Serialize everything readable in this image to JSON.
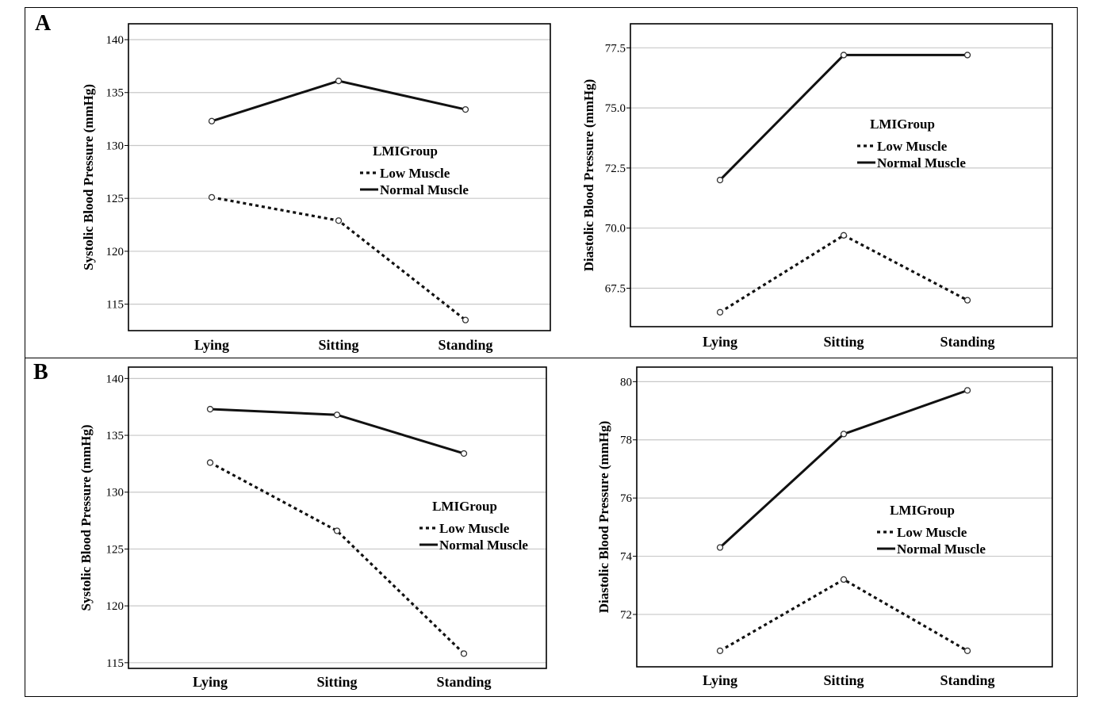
{
  "panels": [
    {
      "label": "A"
    },
    {
      "label": "B"
    }
  ],
  "chart_data": [
    {
      "type": "line",
      "panel": "A",
      "title": "",
      "xlabel": "",
      "ylabel": "Systolic Blood Pressure (mmHg)",
      "categories": [
        "Lying",
        "Sitting",
        "Standing"
      ],
      "ylim": [
        112.5,
        141.5
      ],
      "yticks": [
        115,
        120,
        125,
        130,
        135,
        140
      ],
      "ytick_labels": [
        "115",
        "120",
        "125",
        "130",
        "135",
        "140"
      ],
      "grid": true,
      "legend": {
        "title": "LMIGroup",
        "placement": "center-right"
      },
      "series": [
        {
          "name": "Low Muscle",
          "style": "dotted",
          "values": [
            125.1,
            122.9,
            113.5
          ]
        },
        {
          "name": "Normal Muscle",
          "style": "solid",
          "values": [
            132.3,
            136.1,
            133.4
          ]
        }
      ]
    },
    {
      "type": "line",
      "panel": "A",
      "title": "",
      "xlabel": "",
      "ylabel": "Diastolic Blood Pressure (mmHg)",
      "categories": [
        "Lying",
        "Sitting",
        "Standing"
      ],
      "ylim": [
        65.9,
        78.5
      ],
      "yticks": [
        67.5,
        70.0,
        72.5,
        75.0,
        77.5
      ],
      "ytick_labels": [
        "67.5",
        "70.0",
        "72.5",
        "75.0",
        "77.5"
      ],
      "grid": true,
      "legend": {
        "title": "LMIGroup",
        "placement": "center-right"
      },
      "series": [
        {
          "name": "Low Muscle",
          "style": "dotted",
          "values": [
            66.5,
            69.7,
            67.0
          ]
        },
        {
          "name": "Normal Muscle",
          "style": "solid",
          "values": [
            72.0,
            77.2,
            77.2
          ]
        }
      ]
    },
    {
      "type": "line",
      "panel": "B",
      "title": "",
      "xlabel": "",
      "ylabel": "Systolic Blood Pressure (mmHg)",
      "categories": [
        "Lying",
        "Sitting",
        "Standing"
      ],
      "ylim": [
        114.5,
        141.0
      ],
      "yticks": [
        115,
        120,
        125,
        130,
        135,
        140
      ],
      "ytick_labels": [
        "115",
        "120",
        "125",
        "130",
        "135",
        "140"
      ],
      "grid": true,
      "legend": {
        "title": "LMIGroup",
        "placement": "center-right"
      },
      "series": [
        {
          "name": "Low Muscle",
          "style": "dotted",
          "values": [
            132.6,
            126.6,
            115.8
          ]
        },
        {
          "name": "Normal Muscle",
          "style": "solid",
          "values": [
            137.3,
            136.8,
            133.4
          ]
        }
      ]
    },
    {
      "type": "line",
      "panel": "B",
      "title": "",
      "xlabel": "",
      "ylabel": "Diastolic Blood Pressure (mmHg)",
      "categories": [
        "Lying",
        "Sitting",
        "Standing"
      ],
      "ylim": [
        70.2,
        80.5
      ],
      "yticks": [
        72,
        74,
        76,
        78,
        80
      ],
      "ytick_labels": [
        "72",
        "74",
        "76",
        "78",
        "80"
      ],
      "grid": true,
      "legend": {
        "title": "LMIGroup",
        "placement": "center-right"
      },
      "series": [
        {
          "name": "Low Muscle",
          "style": "dotted",
          "values": [
            70.75,
            73.2,
            70.75
          ]
        },
        {
          "name": "Normal Muscle",
          "style": "solid",
          "values": [
            74.3,
            78.2,
            79.7
          ]
        }
      ]
    }
  ]
}
